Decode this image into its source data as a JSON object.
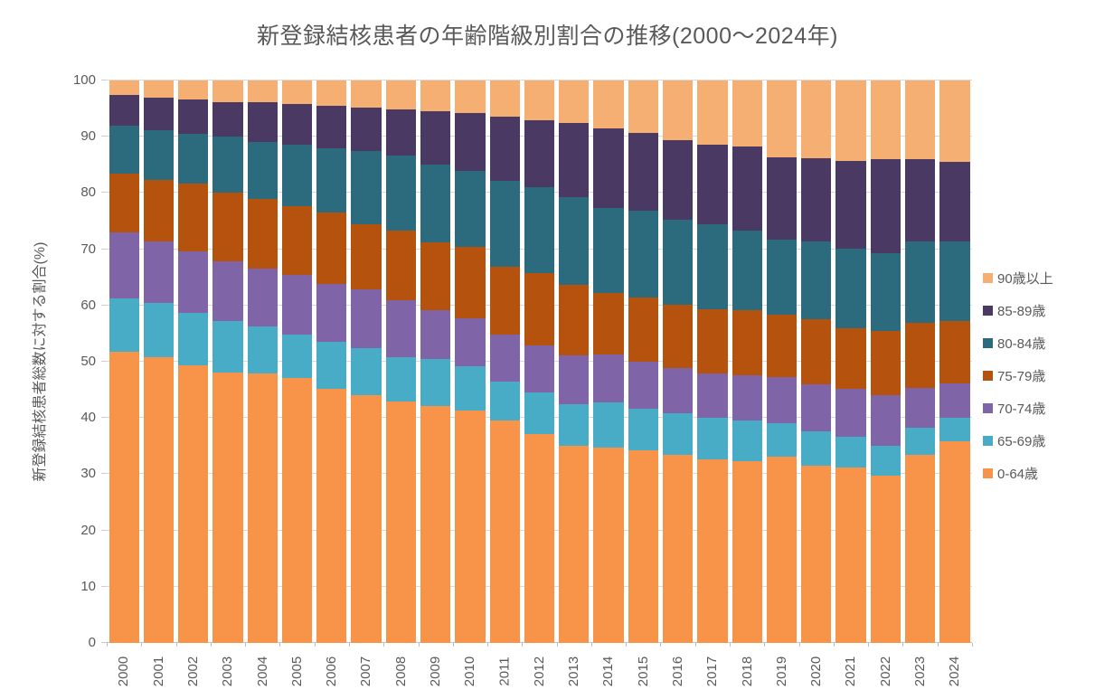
{
  "title": "新登録結核患者の年齢階級別割合の推移(2000〜2024年)",
  "y_axis": {
    "title": "新登録結核患者総数に対する割合(%)",
    "ticks": [
      0,
      10,
      20,
      30,
      40,
      50,
      60,
      70,
      80,
      90,
      100
    ],
    "min": 0,
    "max": 100
  },
  "legend": {
    "position": "right",
    "items": [
      {
        "label": "90歳以上",
        "color": "#F6AF72"
      },
      {
        "label": "85-89歳",
        "color": "#4A3A63"
      },
      {
        "label": "80-84歳",
        "color": "#2C6B7E"
      },
      {
        "label": "75-79歳",
        "color": "#B5530E"
      },
      {
        "label": "70-74歳",
        "color": "#8064A8"
      },
      {
        "label": "65-69歳",
        "color": "#48ACC7"
      },
      {
        "label": "0-64歳",
        "color": "#F7944A"
      }
    ]
  },
  "chart_data": {
    "type": "bar",
    "stacked": true,
    "percent_stacked": true,
    "title": "新登録結核患者の年齢階級別割合の推移(2000〜2024年)",
    "xlabel": "",
    "ylabel": "新登録結核患者総数に対する割合(%)",
    "ylim": [
      0,
      100
    ],
    "grid": true,
    "legend_position": "right",
    "categories": [
      "2000",
      "2001",
      "2002",
      "2003",
      "2004",
      "2005",
      "2006",
      "2007",
      "2008",
      "2009",
      "2010",
      "2011",
      "2012",
      "2013",
      "2014",
      "2015",
      "2016",
      "2017",
      "2018",
      "2019",
      "2020",
      "2021",
      "2022",
      "2023",
      "2024"
    ],
    "series": [
      {
        "name": "0-64歳",
        "key": "age-0-64",
        "color": "#F7944A",
        "values": [
          51.7,
          50.8,
          49.3,
          48.0,
          47.9,
          47.1,
          45.2,
          44.1,
          43.0,
          42.2,
          41.4,
          39.5,
          37.2,
          35.0,
          34.7,
          34.2,
          33.4,
          32.6,
          32.3,
          33.1,
          31.5,
          31.2,
          29.7,
          33.5,
          35.8
        ]
      },
      {
        "name": "65-69歳",
        "key": "age-65-69",
        "color": "#48ACC7",
        "values": [
          9.6,
          9.7,
          9.4,
          9.2,
          8.3,
          7.7,
          8.3,
          8.3,
          7.8,
          8.3,
          7.8,
          7.0,
          7.4,
          7.5,
          8.1,
          7.5,
          7.5,
          7.4,
          7.2,
          5.9,
          6.1,
          5.4,
          5.3,
          4.7,
          4.3
        ]
      },
      {
        "name": "70-74歳",
        "key": "age-70-74",
        "color": "#8064A8",
        "values": [
          11.7,
          10.9,
          11.0,
          10.6,
          10.4,
          10.7,
          10.4,
          10.5,
          10.2,
          8.6,
          8.6,
          8.3,
          8.3,
          8.6,
          8.5,
          8.3,
          8.0,
          7.9,
          8.1,
          8.3,
          8.4,
          8.6,
          9.1,
          7.2,
          6.1
        ]
      },
      {
        "name": "75-79歳",
        "key": "age-75-79",
        "color": "#B5530E",
        "values": [
          10.5,
          11.0,
          11.9,
          12.2,
          12.3,
          12.1,
          12.6,
          11.5,
          12.3,
          12.1,
          12.6,
          12.1,
          12.9,
          12.6,
          11.0,
          11.5,
          11.3,
          11.5,
          11.5,
          11.0,
          11.5,
          10.7,
          11.3,
          11.6,
          11.0
        ]
      },
      {
        "name": "80-84歳",
        "key": "age-80-84",
        "color": "#2C6B7E",
        "values": [
          8.4,
          8.7,
          8.9,
          10.0,
          10.2,
          11.0,
          11.5,
          13.1,
          13.3,
          13.9,
          13.6,
          15.3,
          15.3,
          15.5,
          15.0,
          15.3,
          15.0,
          15.0,
          14.2,
          13.4,
          13.9,
          14.2,
          13.9,
          14.4,
          14.2
        ]
      },
      {
        "name": "85-89歳",
        "key": "age-85-89",
        "color": "#4A3A63",
        "values": [
          5.5,
          5.8,
          6.1,
          6.2,
          7.0,
          7.2,
          7.5,
          7.7,
          8.3,
          9.5,
          10.2,
          11.4,
          11.9,
          13.3,
          14.2,
          13.9,
          14.2,
          14.2,
          14.9,
          14.6,
          14.8,
          15.6,
          16.7,
          14.6,
          14.1
        ]
      },
      {
        "name": "90歳以上",
        "key": "age-90plus",
        "color": "#F6AF72",
        "values": [
          2.6,
          3.1,
          3.4,
          3.8,
          3.9,
          4.2,
          4.5,
          4.8,
          5.1,
          5.4,
          5.8,
          6.4,
          7.0,
          7.5,
          8.5,
          9.3,
          10.6,
          11.4,
          11.8,
          13.7,
          13.8,
          14.3,
          14.0,
          14.0,
          14.5
        ]
      }
    ]
  },
  "colors": {
    "text": "#595959",
    "gridline": "#D9D9D9",
    "axis_line": "#BFBFBF",
    "background": "#FFFFFF"
  }
}
